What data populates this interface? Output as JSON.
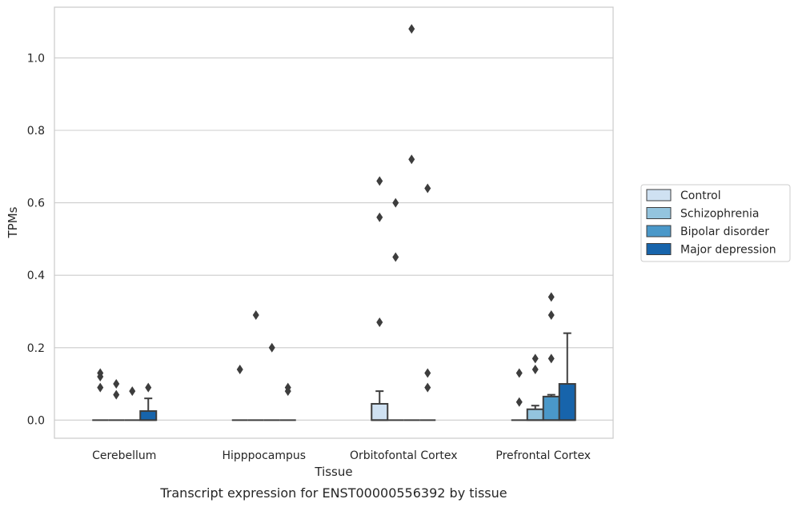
{
  "chart_data": {
    "type": "box",
    "title": "",
    "caption": "Transcript expression for ENST00000556392 by tissue",
    "xlabel": "Tissue",
    "ylabel": "TPMs",
    "ylim": [
      -0.05,
      1.14
    ],
    "yticks": [
      "0.0",
      "0.2",
      "0.4",
      "0.6",
      "0.8",
      "1.0"
    ],
    "grid": "horizontal",
    "legend_position": "right",
    "categories": [
      "Cerebellum",
      "Hipppocampus",
      "Orbitofontal Cortex",
      "Prefrontal Cortex"
    ],
    "series": [
      {
        "name": "Control",
        "color": "#cfe1f2"
      },
      {
        "name": "Schizophrenia",
        "color": "#93c4de"
      },
      {
        "name": "Bipolar disorder",
        "color": "#4a98c9"
      },
      {
        "name": "Major depression",
        "color": "#1764ab"
      }
    ],
    "boxes": [
      [
        {
          "q1": 0,
          "median": 0,
          "q3": 0,
          "whislo": 0,
          "whishi": 0,
          "fliers": [
            0.13,
            0.12,
            0.09
          ]
        },
        {
          "q1": 0,
          "median": 0,
          "q3": 0,
          "whislo": 0,
          "whishi": 0,
          "fliers": [
            0.1,
            0.07
          ]
        },
        {
          "q1": 0,
          "median": 0,
          "q3": 0,
          "whislo": 0,
          "whishi": 0,
          "fliers": [
            0.08
          ]
        },
        {
          "q1": 0,
          "median": 0,
          "q3": 0.025,
          "whislo": 0,
          "whishi": 0.06,
          "fliers": [
            0.09
          ]
        }
      ],
      [
        {
          "q1": 0,
          "median": 0,
          "q3": 0,
          "whislo": 0,
          "whishi": 0,
          "fliers": [
            0.14
          ]
        },
        {
          "q1": 0,
          "median": 0,
          "q3": 0,
          "whislo": 0,
          "whishi": 0,
          "fliers": [
            0.29
          ]
        },
        {
          "q1": 0,
          "median": 0,
          "q3": 0,
          "whislo": 0,
          "whishi": 0,
          "fliers": [
            0.2
          ]
        },
        {
          "q1": 0,
          "median": 0,
          "q3": 0,
          "whislo": 0,
          "whishi": 0,
          "fliers": [
            0.09,
            0.08
          ]
        }
      ],
      [
        {
          "q1": 0,
          "median": 0,
          "q3": 0.045,
          "whislo": 0,
          "whishi": 0.08,
          "fliers": [
            0.66,
            0.56,
            0.27
          ]
        },
        {
          "q1": 0,
          "median": 0,
          "q3": 0,
          "whislo": 0,
          "whishi": 0,
          "fliers": [
            0.6,
            0.45
          ]
        },
        {
          "q1": 0,
          "median": 0,
          "q3": 0,
          "whislo": 0,
          "whishi": 0,
          "fliers": [
            1.08,
            0.72
          ]
        },
        {
          "q1": 0,
          "median": 0,
          "q3": 0,
          "whislo": 0,
          "whishi": 0,
          "fliers": [
            0.64,
            0.13,
            0.09
          ]
        }
      ],
      [
        {
          "q1": 0,
          "median": 0,
          "q3": 0,
          "whislo": 0,
          "whishi": 0,
          "fliers": [
            0.13,
            0.05
          ]
        },
        {
          "q1": 0,
          "median": 0,
          "q3": 0.03,
          "whislo": 0,
          "whishi": 0.04,
          "fliers": [
            0.17,
            0.14
          ]
        },
        {
          "q1": 0,
          "median": 0,
          "q3": 0.065,
          "whislo": 0,
          "whishi": 0.07,
          "fliers": [
            0.34,
            0.29,
            0.17
          ]
        },
        {
          "q1": 0,
          "median": 0,
          "q3": 0.1,
          "whislo": 0,
          "whishi": 0.24,
          "fliers": []
        }
      ]
    ]
  }
}
